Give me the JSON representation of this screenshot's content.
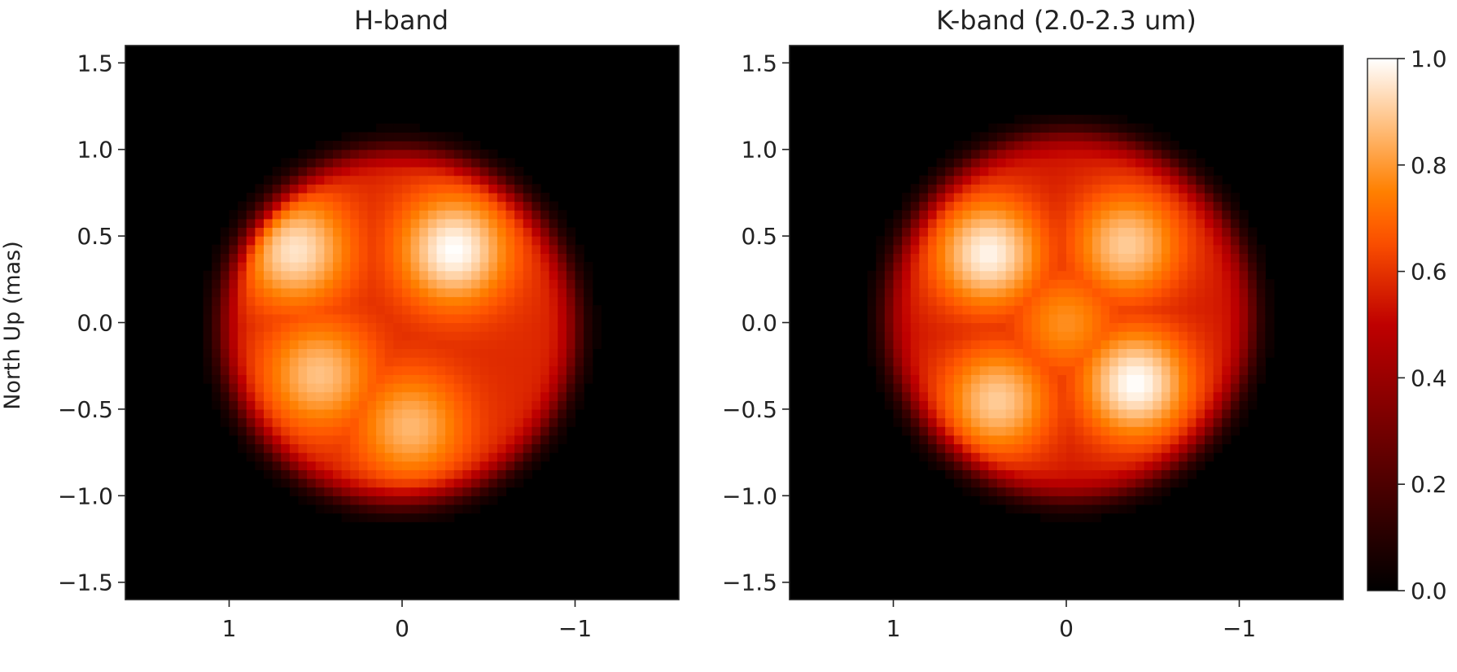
{
  "chart_data": [
    {
      "type": "heatmap",
      "title": "H-band",
      "xlabel": "",
      "ylabel": "North Up (mas)",
      "xlim": [
        1.6,
        -1.6
      ],
      "ylim": [
        -1.6,
        1.6
      ],
      "xticks": [
        1,
        0,
        -1
      ],
      "xtick_labels": [
        "1",
        "0",
        "−1"
      ],
      "yticks": [
        1.5,
        1.0,
        0.5,
        0.0,
        -0.5,
        -1.0,
        -1.5
      ],
      "ytick_labels": [
        "1.5",
        "1.0",
        "0.5",
        "0.0",
        "−0.5",
        "−1.0",
        "−1.5"
      ],
      "grid": false,
      "pixel_size_mas": 0.05,
      "disk": {
        "center": [
          0.02,
          -0.02
        ],
        "radius": 1.02,
        "edge_level": 0.58,
        "background": 0.0
      },
      "features": [
        {
          "x": -0.3,
          "y": 0.42,
          "level": 1.0
        },
        {
          "x": 0.62,
          "y": 0.42,
          "level": 0.95
        },
        {
          "x": 0.48,
          "y": -0.3,
          "level": 0.88
        },
        {
          "x": -0.05,
          "y": -0.6,
          "level": 0.86
        }
      ]
    },
    {
      "type": "heatmap",
      "title": "K-band (2.0-2.3 um)",
      "xlabel": "",
      "ylabel": "",
      "xlim": [
        1.6,
        -1.6
      ],
      "ylim": [
        -1.6,
        1.6
      ],
      "xticks": [
        1,
        0,
        -1
      ],
      "xtick_labels": [
        "1",
        "0",
        "−1"
      ],
      "yticks": [
        1.5,
        1.0,
        0.5,
        0.0,
        -0.5,
        -1.0,
        -1.5
      ],
      "ytick_labels": [
        "1.5",
        "1.0",
        "0.5",
        "0.0",
        "−0.5",
        "−1.0",
        "−1.5"
      ],
      "grid": false,
      "pixel_size_mas": 0.05,
      "disk": {
        "center": [
          -0.02,
          0.04
        ],
        "radius": 1.05,
        "edge_level": 0.55,
        "background": 0.0
      },
      "features": [
        {
          "x": 0.45,
          "y": 0.4,
          "level": 0.98
        },
        {
          "x": -0.4,
          "y": -0.35,
          "level": 1.0
        },
        {
          "x": -0.35,
          "y": 0.45,
          "level": 0.9
        },
        {
          "x": 0.4,
          "y": -0.45,
          "level": 0.9
        },
        {
          "x": 0.0,
          "y": 0.0,
          "level": 0.78
        }
      ]
    }
  ],
  "colorbar": {
    "colormap": "gist_heat",
    "range": [
      0.0,
      1.0
    ],
    "ticks": [
      0.0,
      0.2,
      0.4,
      0.6,
      0.8,
      1.0
    ],
    "tick_labels": [
      "0.0",
      "0.2",
      "0.4",
      "0.6",
      "0.8",
      "1.0"
    ]
  }
}
